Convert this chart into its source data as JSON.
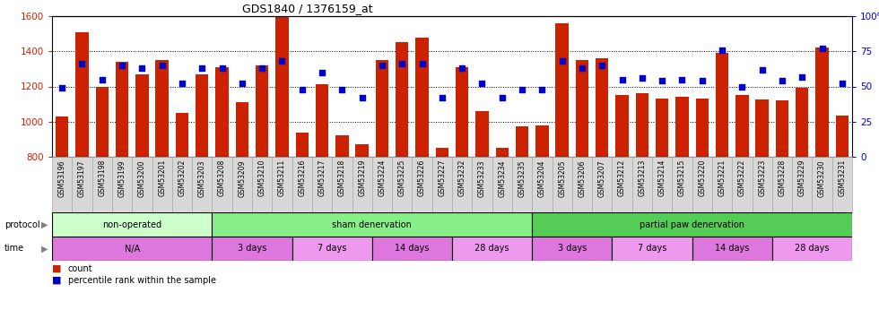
{
  "title": "GDS1840 / 1376159_at",
  "samples": [
    "GSM53196",
    "GSM53197",
    "GSM53198",
    "GSM53199",
    "GSM53200",
    "GSM53201",
    "GSM53202",
    "GSM53203",
    "GSM53208",
    "GSM53209",
    "GSM53210",
    "GSM53211",
    "GSM53216",
    "GSM53217",
    "GSM53218",
    "GSM53219",
    "GSM53224",
    "GSM53225",
    "GSM53226",
    "GSM53227",
    "GSM53232",
    "GSM53233",
    "GSM53234",
    "GSM53235",
    "GSM53204",
    "GSM53205",
    "GSM53206",
    "GSM53207",
    "GSM53212",
    "GSM53213",
    "GSM53214",
    "GSM53215",
    "GSM53220",
    "GSM53221",
    "GSM53222",
    "GSM53223",
    "GSM53228",
    "GSM53229",
    "GSM53230",
    "GSM53231"
  ],
  "counts": [
    1030,
    1510,
    1200,
    1340,
    1270,
    1350,
    1050,
    1270,
    1310,
    1110,
    1320,
    1600,
    940,
    1215,
    920,
    870,
    1350,
    1450,
    1480,
    850,
    1310,
    1060,
    850,
    975,
    980,
    1560,
    1350,
    1360,
    1150,
    1160,
    1130,
    1140,
    1130,
    1390,
    1150,
    1125,
    1120,
    1190,
    1420,
    1035
  ],
  "percentiles": [
    49,
    66,
    55,
    65,
    63,
    65,
    52,
    63,
    63,
    52,
    63,
    68,
    48,
    60,
    48,
    42,
    65,
    66,
    66,
    42,
    63,
    52,
    42,
    48,
    48,
    68,
    63,
    65,
    55,
    56,
    54,
    55,
    54,
    76,
    50,
    62,
    54,
    57,
    77,
    52
  ],
  "ylim_left": [
    800,
    1600
  ],
  "ylim_right": [
    0,
    100
  ],
  "yticks_left": [
    800,
    1000,
    1200,
    1400,
    1600
  ],
  "yticks_right": [
    0,
    25,
    50,
    75,
    100
  ],
  "bar_color": "#cc2200",
  "dot_color": "#0000cc",
  "protocol_groups": [
    {
      "label": "non-operated",
      "start": 0,
      "end": 8,
      "color": "#ccffcc"
    },
    {
      "label": "sham denervation",
      "start": 8,
      "end": 24,
      "color": "#88ee88"
    },
    {
      "label": "partial paw denervation",
      "start": 24,
      "end": 40,
      "color": "#55cc55"
    }
  ],
  "time_groups": [
    {
      "label": "N/A",
      "start": 0,
      "end": 8,
      "color": "#dd77dd"
    },
    {
      "label": "3 days",
      "start": 8,
      "end": 12,
      "color": "#dd77dd"
    },
    {
      "label": "7 days",
      "start": 12,
      "end": 16,
      "color": "#ee99ee"
    },
    {
      "label": "14 days",
      "start": 16,
      "end": 20,
      "color": "#dd77dd"
    },
    {
      "label": "28 days",
      "start": 20,
      "end": 24,
      "color": "#ee99ee"
    },
    {
      "label": "3 days",
      "start": 24,
      "end": 28,
      "color": "#dd77dd"
    },
    {
      "label": "7 days",
      "start": 28,
      "end": 32,
      "color": "#ee99ee"
    },
    {
      "label": "14 days",
      "start": 32,
      "end": 36,
      "color": "#dd77dd"
    },
    {
      "label": "28 days",
      "start": 36,
      "end": 40,
      "color": "#ee99ee"
    }
  ],
  "left_axis_color": "#cc2200",
  "right_axis_color": "#0000cc",
  "tick_label_bg": "#d8d8d8",
  "tick_label_edge": "#aaaaaa"
}
